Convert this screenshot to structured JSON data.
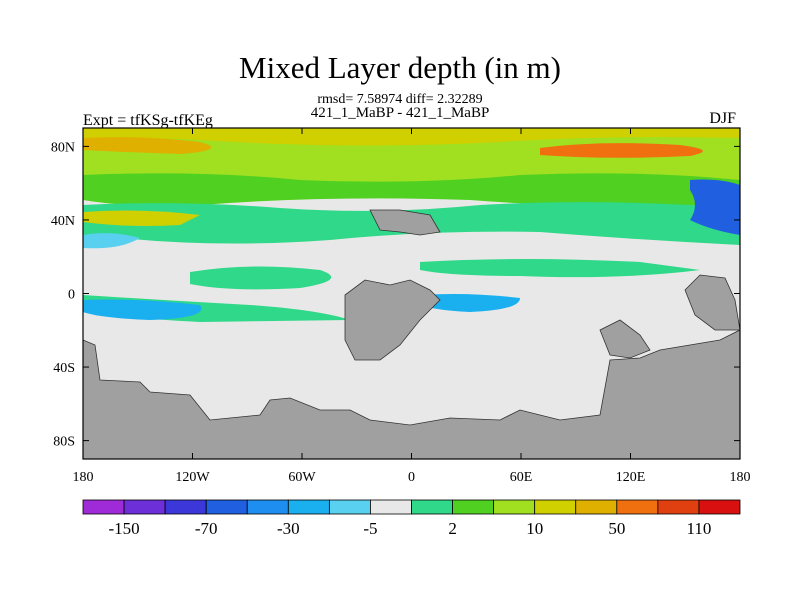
{
  "chart_data": {
    "type": "filled-contour-map",
    "title": "Mixed Layer depth (in m)",
    "stats": "rmsd= 7.58974 diff= 2.32289",
    "subtitle": "421_1_MaBP - 421_1_MaBP",
    "expt_label": "Expt = tfKSg-tfKEg",
    "season": "DJF",
    "x_ticks": [
      "180",
      "120W",
      "60W",
      "0",
      "60E",
      "120E",
      "180"
    ],
    "y_ticks": [
      "80N",
      "40N",
      "0",
      "40S",
      "80S"
    ],
    "xlim": [
      -180,
      180
    ],
    "ylim": [
      -90,
      90
    ],
    "colorbar": {
      "labels": [
        "-150",
        "-70",
        "-30",
        "-5",
        "2",
        "10",
        "50",
        "110"
      ],
      "colors": [
        "#9f2bd8",
        "#6d2fd8",
        "#3c37d9",
        "#1f5fe0",
        "#1e8ff0",
        "#1ab0f0",
        "#5ad0f0",
        "#e8e8e8",
        "#30d88a",
        "#50d020",
        "#a0e020",
        "#d0d000",
        "#e0b000",
        "#f07010",
        "#e04010",
        "#d81010"
      ]
    },
    "land_color": "#a0a0a0",
    "ocean_near_zero_color": "#e8e8e8"
  }
}
